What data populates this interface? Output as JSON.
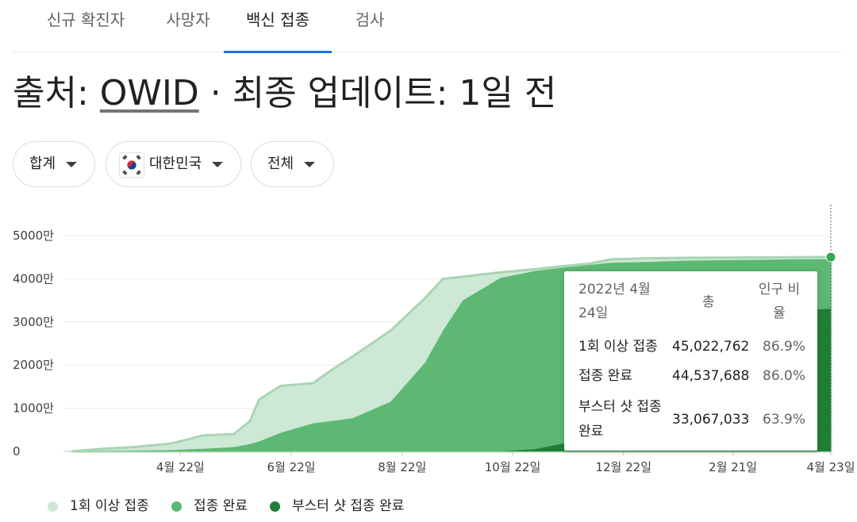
{
  "tabs": [
    {
      "label": "신규 확진자"
    },
    {
      "label": "사망자"
    },
    {
      "label": "백신 접종"
    },
    {
      "label": "검사"
    }
  ],
  "source": {
    "prefix": "출처: ",
    "link": "OWID",
    "suffix": " · 최종 업데이트: 1일 전"
  },
  "filters": {
    "measure": "합계",
    "country": "대한민국",
    "age": "전체"
  },
  "chart_data": {
    "type": "area",
    "x_ticks": [
      "4월 22일",
      "6월 22일",
      "8월 22일",
      "10월 22일",
      "12월 22일",
      "2월 21일",
      "4월 23일"
    ],
    "y_ticks": [
      "5000만",
      "4000만",
      "3000만",
      "2000만",
      "1000만",
      "0"
    ],
    "ylim": [
      0,
      50000000
    ],
    "grid": true,
    "legend_position": "bottom",
    "x": [
      "2021-02-26",
      "2021-03-15",
      "2021-04-01",
      "2021-04-22",
      "2021-05-10",
      "2021-05-27",
      "2021-06-05",
      "2021-06-10",
      "2021-06-22",
      "2021-07-10",
      "2021-07-20",
      "2021-08-01",
      "2021-08-22",
      "2021-09-10",
      "2021-09-20",
      "2021-10-01",
      "2021-10-22",
      "2021-11-10",
      "2021-11-22",
      "2021-12-10",
      "2021-12-22",
      "2022-01-10",
      "2022-02-01",
      "2022-02-21",
      "2022-03-15",
      "2022-04-01",
      "2022-04-23"
    ],
    "series": [
      {
        "name": "1회 이상 접종",
        "color": "#cde8d4",
        "values": [
          0,
          600000,
          1000000,
          1800000,
          3700000,
          4000000,
          7000000,
          12000000,
          15200000,
          15800000,
          18800000,
          22000000,
          28000000,
          35500000,
          40000000,
          40500000,
          41500000,
          42200000,
          42800000,
          43500000,
          44500000,
          44750000,
          44850000,
          44900000,
          44950000,
          45000000,
          45022762
        ]
      },
      {
        "name": "접종 완료",
        "color": "#5cb872",
        "values": [
          0,
          0,
          100000,
          300000,
          600000,
          1000000,
          1700000,
          2300000,
          4300000,
          6500000,
          7000000,
          7700000,
          11500000,
          20500000,
          28000000,
          35000000,
          40200000,
          41800000,
          42400000,
          43200000,
          43700000,
          43900000,
          44200000,
          44300000,
          44400000,
          44500000,
          44537688
        ]
      },
      {
        "name": "부스터 샷 접종 완료",
        "color": "#1e7e34",
        "values": [
          0,
          0,
          0,
          0,
          0,
          0,
          0,
          0,
          0,
          0,
          0,
          0,
          0,
          0,
          0,
          0,
          0,
          500000,
          1500000,
          3000000,
          6000000,
          14000000,
          24000000,
          29000000,
          31500000,
          32500000,
          33067033
        ]
      }
    ],
    "tooltip": {
      "date": "2022년 4월 24일",
      "col_total": "총",
      "col_ratio": "인구 비율",
      "rows": [
        {
          "label": "1회 이상 접종",
          "total": "45,022,762",
          "ratio": "86.9%"
        },
        {
          "label": "접종 완료",
          "total": "44,537,688",
          "ratio": "86.0%"
        },
        {
          "label": "부스터 샷 접종 완료",
          "total": "33,067,033",
          "ratio": "63.9%"
        }
      ]
    }
  }
}
